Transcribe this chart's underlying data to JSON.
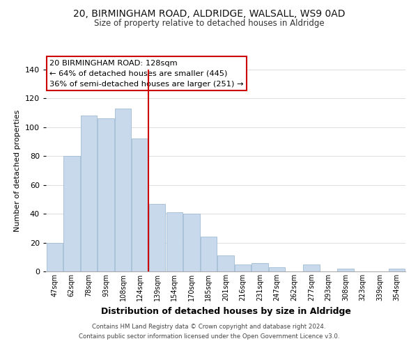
{
  "title_line1": "20, BIRMINGHAM ROAD, ALDRIDGE, WALSALL, WS9 0AD",
  "title_line2": "Size of property relative to detached houses in Aldridge",
  "xlabel": "Distribution of detached houses by size in Aldridge",
  "ylabel": "Number of detached properties",
  "bar_labels": [
    "47sqm",
    "62sqm",
    "78sqm",
    "93sqm",
    "108sqm",
    "124sqm",
    "139sqm",
    "154sqm",
    "170sqm",
    "185sqm",
    "201sqm",
    "216sqm",
    "231sqm",
    "247sqm",
    "262sqm",
    "277sqm",
    "293sqm",
    "308sqm",
    "323sqm",
    "339sqm",
    "354sqm"
  ],
  "bar_values": [
    20,
    80,
    108,
    106,
    113,
    92,
    47,
    41,
    40,
    24,
    11,
    5,
    6,
    3,
    0,
    5,
    0,
    2,
    0,
    0,
    2
  ],
  "bar_color": "#c8d9ec",
  "bar_edge_color": "#a0bcd4",
  "ref_line_x": 5.5,
  "ref_line_color": "#cc0000",
  "ylim": [
    0,
    140
  ],
  "yticks": [
    0,
    20,
    40,
    60,
    80,
    100,
    120,
    140
  ],
  "annotation_title": "20 BIRMINGHAM ROAD: 128sqm",
  "annotation_line1": "← 64% of detached houses are smaller (445)",
  "annotation_line2": "36% of semi-detached houses are larger (251) →",
  "annotation_box_color": "#ffffff",
  "annotation_box_edge": "#cc0000",
  "footer_line1": "Contains HM Land Registry data © Crown copyright and database right 2024.",
  "footer_line2": "Contains public sector information licensed under the Open Government Licence v3.0.",
  "background_color": "#ffffff",
  "grid_color": "#dddddd"
}
